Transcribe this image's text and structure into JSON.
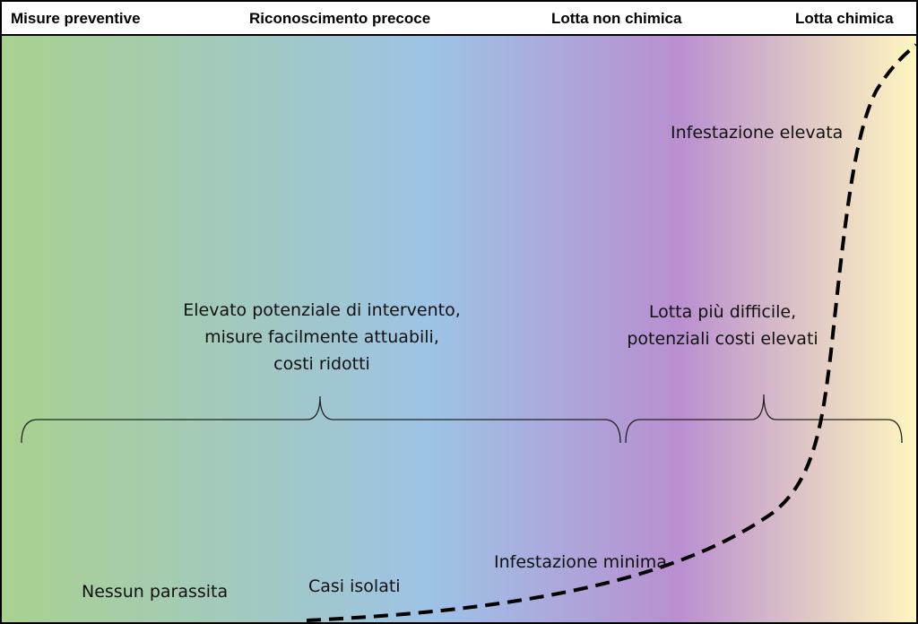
{
  "stages": [
    "Misure preventive",
    "Riconoscimento precoce",
    "Lotta non chimica",
    "Lotta chimica"
  ],
  "labels": {
    "nessun_parassita": "Nessun parassita",
    "casi_isolati": "Casi isolati",
    "infestazione_minima": "Infestazione minima",
    "infestazione_elevata": "Infestazione elevata"
  },
  "notes": {
    "left": [
      "Elevato potenziale di intervento,",
      "misure facilmente attuabili,",
      "costi ridotti"
    ],
    "right": [
      "Lotta più difficile,",
      "potenziali costi elevati"
    ]
  },
  "colors": {
    "gradient": [
      "#a9d18e",
      "#9dc3e6",
      "#b98fd0",
      "#fff6bf"
    ],
    "border": "#000000"
  }
}
